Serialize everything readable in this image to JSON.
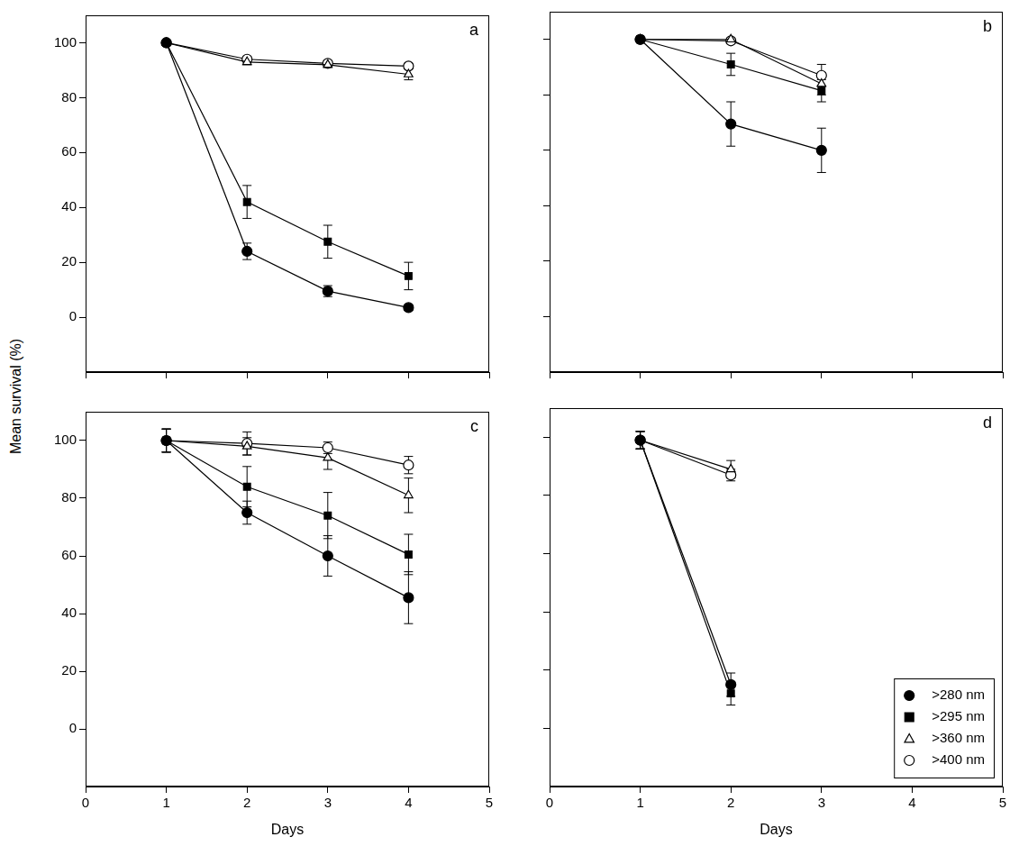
{
  "ylabel": "Mean survival (%)",
  "chart_data": [
    {
      "type": "line",
      "title": "a",
      "x": [
        1,
        2,
        3,
        4
      ],
      "xlim": [
        0,
        5
      ],
      "xticks": [
        0,
        1,
        2,
        3,
        4,
        5
      ],
      "ylim": [
        -20,
        110
      ],
      "yticks": [
        0,
        20,
        40,
        60,
        80,
        100
      ],
      "grid": false,
      "tick_labels": "y",
      "series": [
        {
          "name": ">280 nm",
          "color": "#000000",
          "marker": "circle",
          "values": [
            100,
            24,
            9.5,
            3.5
          ],
          "errors": [
            0,
            3,
            2,
            1
          ]
        },
        {
          "name": ">295 nm",
          "color": "#000000",
          "marker": "square",
          "values": [
            100,
            42,
            27.5,
            15
          ],
          "errors": [
            0,
            6,
            6,
            5
          ]
        },
        {
          "name": ">360 nm",
          "color": "#000000",
          "marker": "triangle-open",
          "values": [
            100,
            93,
            92,
            88.5
          ],
          "errors": [
            0,
            1,
            1,
            2
          ]
        },
        {
          "name": ">400 nm",
          "color": "#000000",
          "marker": "circle-open",
          "values": [
            100,
            94,
            92.5,
            91.5
          ],
          "errors": [
            0,
            1,
            1,
            1
          ]
        }
      ]
    },
    {
      "type": "line",
      "title": "b",
      "x": [
        1,
        2,
        3
      ],
      "xlim": [
        0,
        5
      ],
      "xticks": [
        0,
        1,
        2,
        3,
        4,
        5
      ],
      "ylim": [
        -20,
        110
      ],
      "yticks": [
        0,
        20,
        40,
        60,
        80,
        100
      ],
      "grid": false,
      "tick_labels": false,
      "series": [
        {
          "name": ">280 nm",
          "color": "#000000",
          "marker": "circle",
          "values": [
            100,
            69.5,
            60
          ],
          "errors": [
            0,
            8,
            8
          ]
        },
        {
          "name": ">295 nm",
          "color": "#000000",
          "marker": "square",
          "values": [
            100,
            91,
            81.5
          ],
          "errors": [
            0,
            4,
            4
          ]
        },
        {
          "name": ">360 nm",
          "color": "#000000",
          "marker": "triangle-open",
          "values": [
            100,
            100,
            84
          ],
          "errors": [
            0,
            0,
            4
          ]
        },
        {
          "name": ">400 nm",
          "color": "#000000",
          "marker": "circle-open",
          "values": [
            100,
            99.5,
            87
          ],
          "errors": [
            0,
            1,
            4
          ]
        }
      ]
    },
    {
      "type": "line",
      "title": "c",
      "x": [
        1,
        2,
        3,
        4
      ],
      "xlabel": "Days",
      "xlim": [
        0,
        5
      ],
      "xticks": [
        0,
        1,
        2,
        3,
        4,
        5
      ],
      "ylim": [
        -20,
        110
      ],
      "yticks": [
        0,
        20,
        40,
        60,
        80,
        100
      ],
      "grid": false,
      "tick_labels": true,
      "series": [
        {
          "name": ">280 nm",
          "color": "#000000",
          "marker": "circle",
          "values": [
            100,
            75,
            60,
            45.5
          ],
          "errors": [
            4,
            4,
            7,
            9
          ]
        },
        {
          "name": ">295 nm",
          "color": "#000000",
          "marker": "square",
          "values": [
            100,
            84,
            74,
            60.5
          ],
          "errors": [
            4,
            7,
            8,
            7
          ]
        },
        {
          "name": ">360 nm",
          "color": "#000000",
          "marker": "triangle-open",
          "values": [
            100,
            98,
            94,
            81
          ],
          "errors": [
            4,
            3,
            4,
            6
          ]
        },
        {
          "name": ">400 nm",
          "color": "#000000",
          "marker": "circle-open",
          "values": [
            100,
            99,
            97.5,
            91.5
          ],
          "errors": [
            4,
            4,
            2,
            3
          ]
        }
      ]
    },
    {
      "type": "line",
      "title": "d",
      "x": [
        1,
        2
      ],
      "xlabel": "Days",
      "xlim": [
        0,
        5
      ],
      "xticks": [
        0,
        1,
        2,
        3,
        4,
        5
      ],
      "ylim": [
        -20,
        110
      ],
      "yticks": [
        0,
        20,
        40,
        60,
        80,
        100
      ],
      "grid": false,
      "tick_labels": "x",
      "legend": "lower right",
      "series": [
        {
          "name": ">280 nm",
          "color": "#000000",
          "marker": "circle",
          "values": [
            99,
            15
          ],
          "errors": [
            3,
            4
          ]
        },
        {
          "name": ">295 nm",
          "color": "#000000",
          "marker": "square",
          "values": [
            99,
            12
          ],
          "errors": [
            3,
            4
          ]
        },
        {
          "name": ">360 nm",
          "color": "#000000",
          "marker": "triangle-open",
          "values": [
            99,
            89
          ],
          "errors": [
            3,
            3
          ]
        },
        {
          "name": ">400 nm",
          "color": "#000000",
          "marker": "circle-open",
          "values": [
            99,
            87
          ],
          "errors": [
            3,
            2
          ]
        }
      ]
    }
  ]
}
